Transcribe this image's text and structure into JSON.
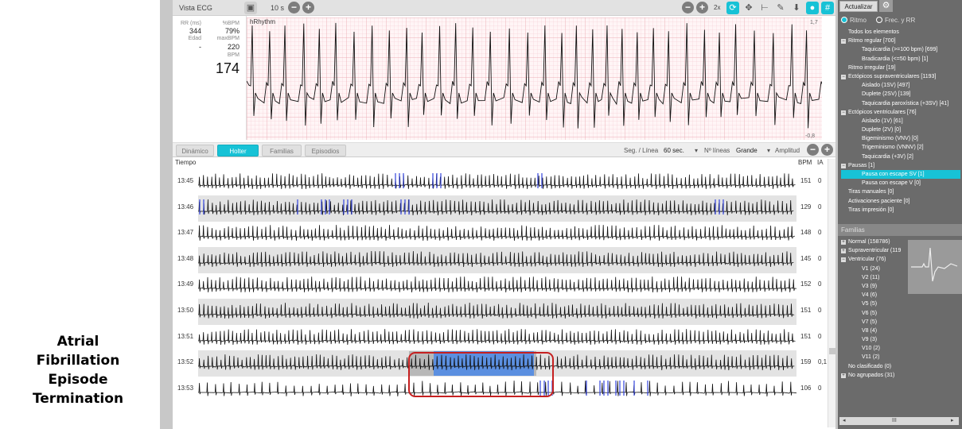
{
  "caption": [
    "Atrial",
    "Fibrillation",
    "Episode",
    "Termination"
  ],
  "toolbar": {
    "title": "Vista ECG",
    "duration": "10 s",
    "zoom": "2x"
  },
  "stats": {
    "rr_label": "RR (ms)",
    "rr_value": "344",
    "pbpm_label": "%BPM",
    "pbpm_value": "79%",
    "edad_label": "Edad",
    "edad_value": "-",
    "maxbpm_label": "maxBPM",
    "maxbpm_value": "220",
    "bpm_label": "BPM",
    "bpm_value": "174"
  },
  "ecg": {
    "label": "hRhythm",
    "scale_top": "1,7",
    "scale_bottom": "-0,8"
  },
  "tabs": [
    "Dinámico",
    "Holter",
    "Familias",
    "Episodios"
  ],
  "controls": {
    "seg_label": "Seg. / Línea",
    "seg_value": "60 sec.",
    "lines_label": "Nº líneas",
    "lines_value": "Grande",
    "amp_label": "Amplitud"
  },
  "table_headers": {
    "time": "Tiempo",
    "bpm": "BPM",
    "ia": "IA"
  },
  "rows": [
    {
      "time": "13:45",
      "bpm": "151",
      "ia": "0"
    },
    {
      "time": "13:46",
      "bpm": "129",
      "ia": "0"
    },
    {
      "time": "13:47",
      "bpm": "148",
      "ia": "0"
    },
    {
      "time": "13:48",
      "bpm": "145",
      "ia": "0"
    },
    {
      "time": "13:49",
      "bpm": "152",
      "ia": "0"
    },
    {
      "time": "13:50",
      "bpm": "151",
      "ia": "0"
    },
    {
      "time": "13:51",
      "bpm": "151",
      "ia": "0"
    },
    {
      "time": "13:52",
      "bpm": "159",
      "ia": "0,1"
    },
    {
      "time": "13:53",
      "bpm": "106",
      "ia": "0"
    }
  ],
  "sidebar": {
    "update_button": "Actualizar",
    "radio_ritmo": "Ritmo",
    "radio_frec": "Frec. y RR",
    "tree": [
      {
        "label": "Todos los elementos",
        "level": 0,
        "toggle": ""
      },
      {
        "label": "Ritmo regular [700]",
        "level": 0,
        "toggle": "−"
      },
      {
        "label": "Taquicardia (>=100 bpm) [699]",
        "level": 2,
        "toggle": ""
      },
      {
        "label": "Bradicardia (<=50 bpm) [1]",
        "level": 2,
        "toggle": ""
      },
      {
        "label": "Ritmo irregular [19]",
        "level": 0,
        "toggle": ""
      },
      {
        "label": "Ectópicos supraventriculares [1193]",
        "level": 0,
        "toggle": "−"
      },
      {
        "label": "Aislado (1SV) [497]",
        "level": 2,
        "toggle": ""
      },
      {
        "label": "Duplete (2SV) [139]",
        "level": 2,
        "toggle": ""
      },
      {
        "label": "Taquicardia paroxística (+3SV) [41]",
        "level": 2,
        "toggle": ""
      },
      {
        "label": "Ectópicos ventriculares [76]",
        "level": 0,
        "toggle": "−"
      },
      {
        "label": "Aislado (1V) [61]",
        "level": 2,
        "toggle": ""
      },
      {
        "label": "Duplete (2V) [0]",
        "level": 2,
        "toggle": ""
      },
      {
        "label": "Bigeminismo (VNV) [0]",
        "level": 2,
        "toggle": ""
      },
      {
        "label": "Trigeminismo (VNNV) [2]",
        "level": 2,
        "toggle": ""
      },
      {
        "label": "Taquicardia (+3V) [2]",
        "level": 2,
        "toggle": ""
      },
      {
        "label": "Pausas [1]",
        "level": 0,
        "toggle": "−"
      },
      {
        "label": "Pausa con escape SV [1]",
        "level": 2,
        "toggle": "",
        "selected": true
      },
      {
        "label": "Pausa con escape V [0]",
        "level": 2,
        "toggle": ""
      },
      {
        "label": "Tiras manuales [0]",
        "level": 0,
        "toggle": ""
      },
      {
        "label": "Activaciones paciente [0]",
        "level": 0,
        "toggle": ""
      },
      {
        "label": "Tiras impresión [0]",
        "level": 0,
        "toggle": ""
      }
    ],
    "families_header": "Familias",
    "families": [
      {
        "label": "Normal (158786)",
        "level": 0,
        "toggle": "+"
      },
      {
        "label": "Supraventricular (119",
        "level": 0,
        "toggle": "+"
      },
      {
        "label": "Ventricular (76)",
        "level": 0,
        "toggle": "−"
      },
      {
        "label": "V1 (24)",
        "level": 2,
        "toggle": ""
      },
      {
        "label": "V2 (11)",
        "level": 2,
        "toggle": ""
      },
      {
        "label": "V3 (9)",
        "level": 2,
        "toggle": ""
      },
      {
        "label": "V4 (6)",
        "level": 2,
        "toggle": ""
      },
      {
        "label": "V5 (5)",
        "level": 2,
        "toggle": ""
      },
      {
        "label": "V6 (5)",
        "level": 2,
        "toggle": ""
      },
      {
        "label": "V7 (5)",
        "level": 2,
        "toggle": ""
      },
      {
        "label": "V8 (4)",
        "level": 2,
        "toggle": ""
      },
      {
        "label": "V9 (3)",
        "level": 2,
        "toggle": ""
      },
      {
        "label": "V10 (2)",
        "level": 2,
        "toggle": ""
      },
      {
        "label": "V11 (2)",
        "level": 2,
        "toggle": ""
      },
      {
        "label": "No clasificado (0)",
        "level": 0,
        "toggle": ""
      },
      {
        "label": "No agrupados (31)",
        "level": 0,
        "toggle": "+"
      }
    ],
    "hscroll_mark": "III"
  },
  "colors": {
    "accent": "#17c2d6",
    "highlight_box": "#c62020",
    "selection": "#5b8fe0",
    "ectopic": "#3344dd"
  }
}
